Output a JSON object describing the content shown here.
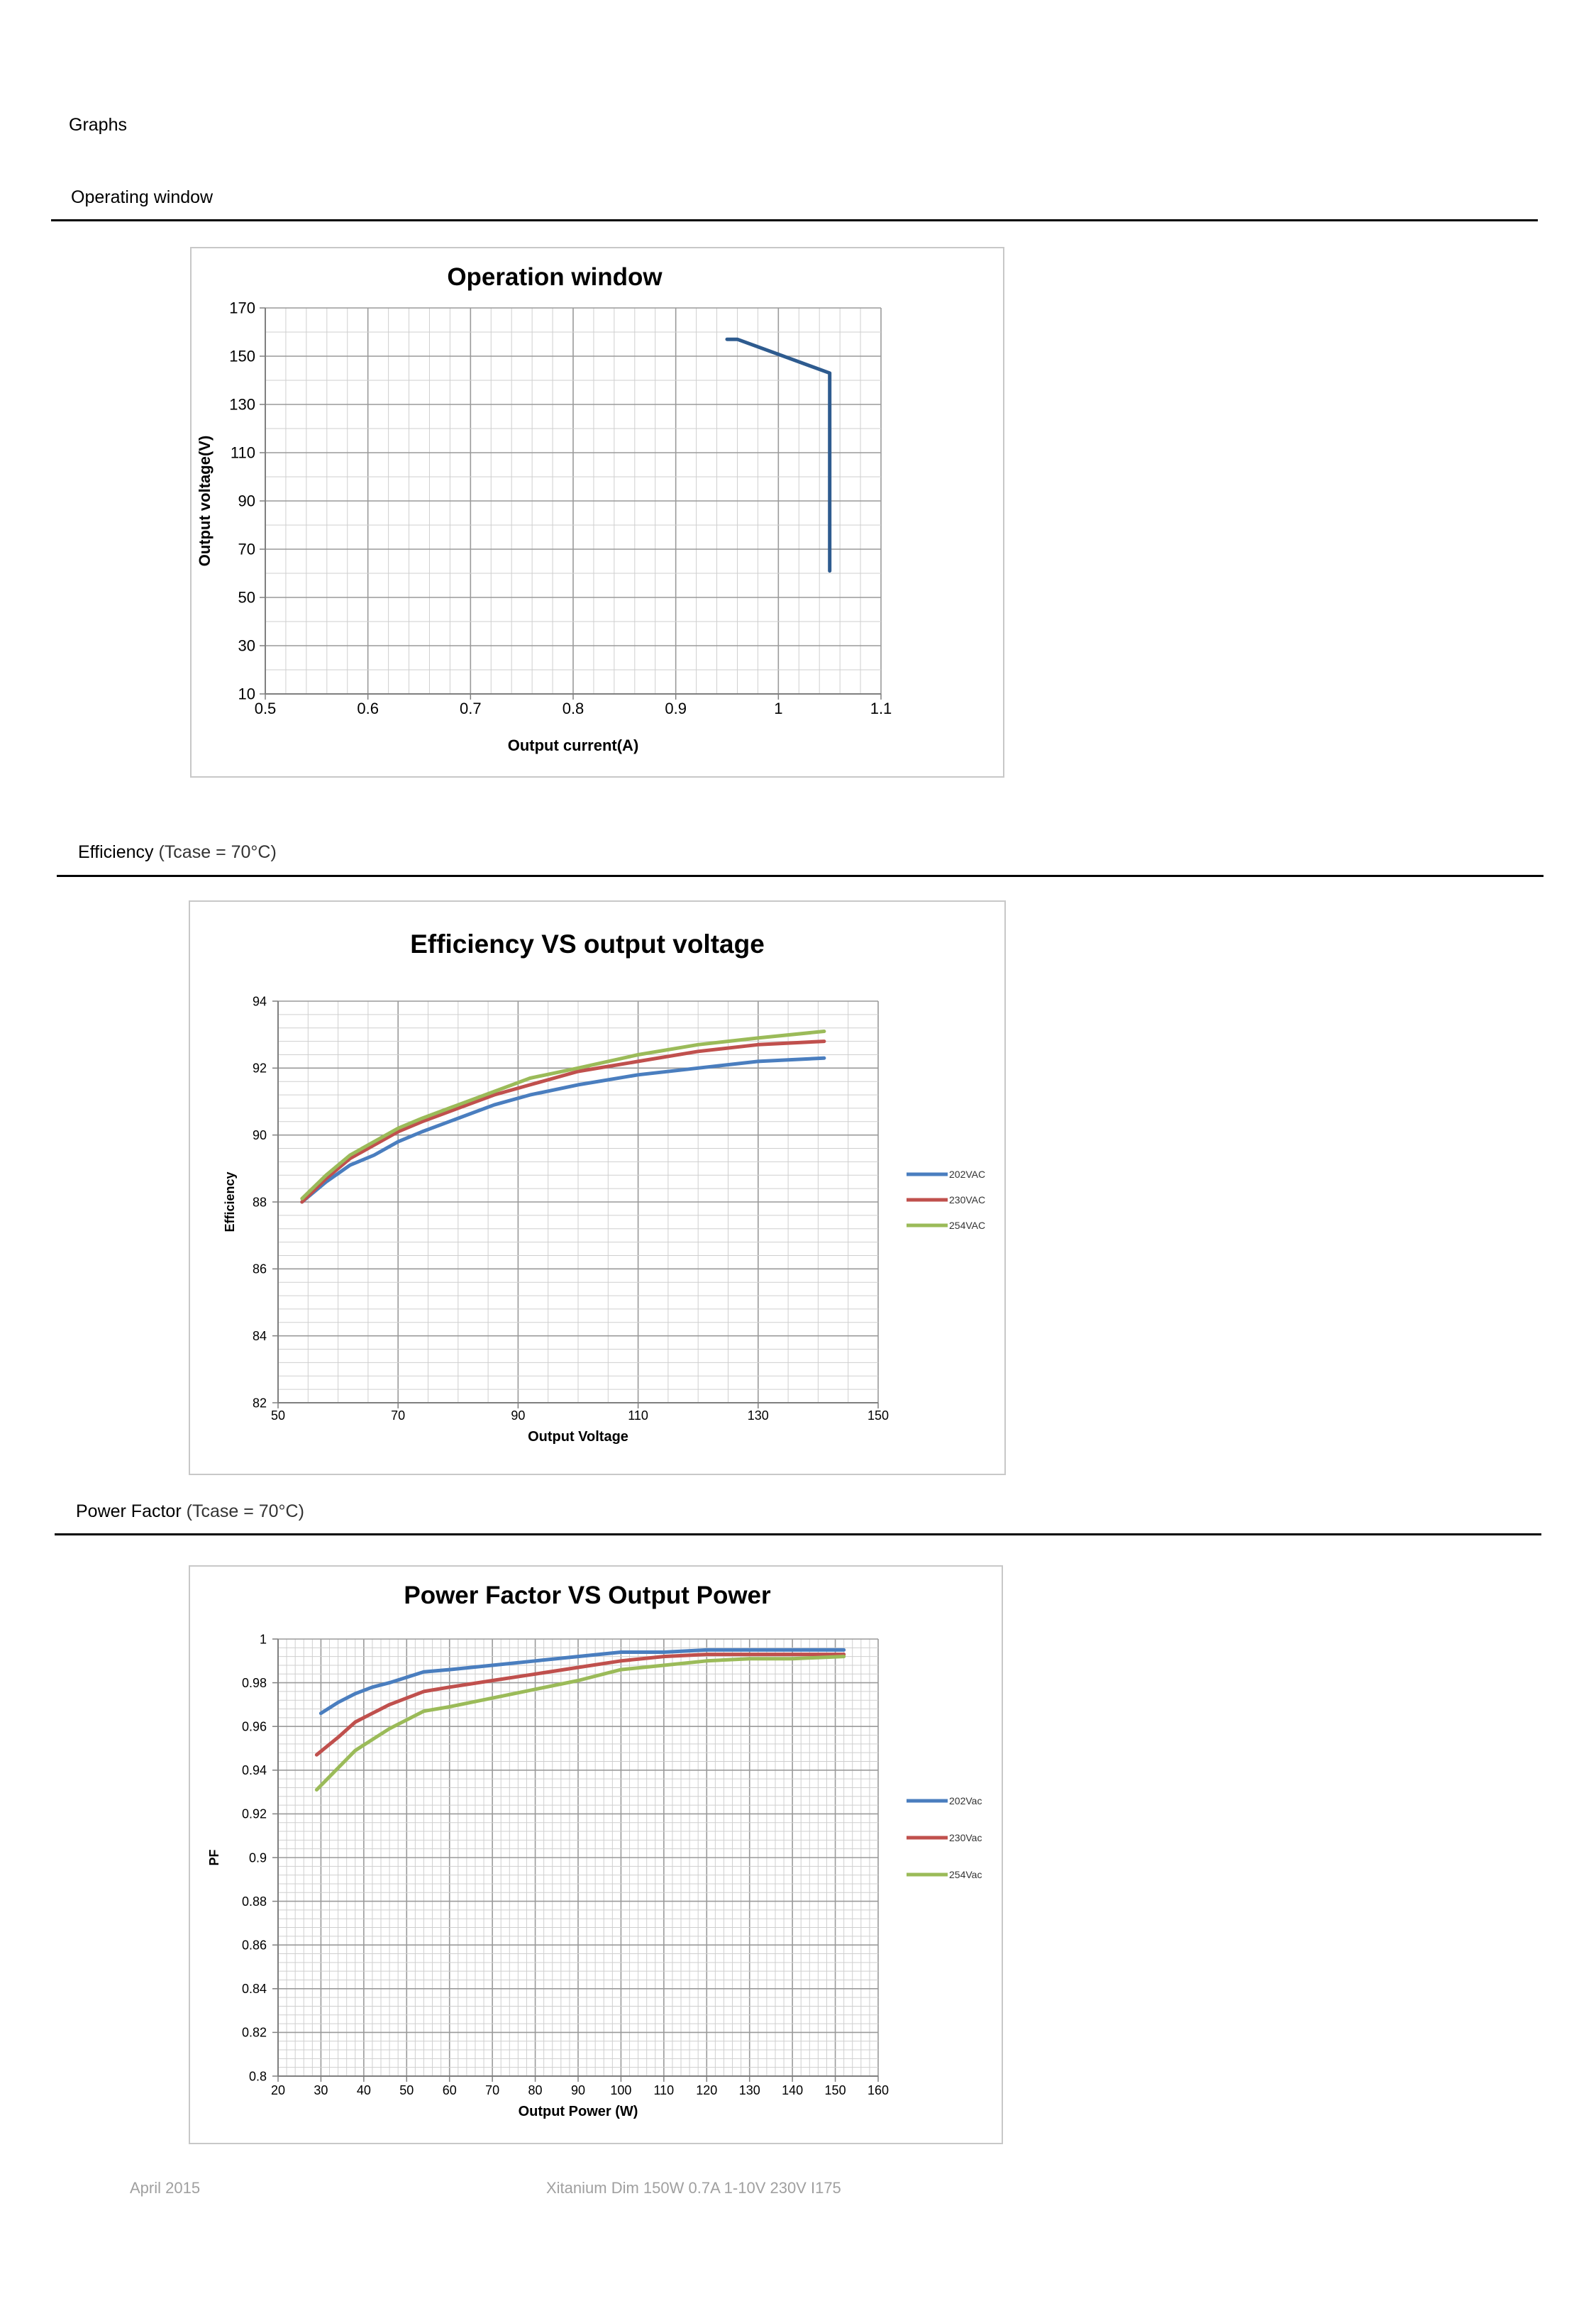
{
  "document": {
    "heading": "Graphs",
    "footer_date": "April 2015",
    "footer_product": "Xitanium Dim 150W 0.7A 1-10V 230V I175"
  },
  "sections": [
    {
      "title": "Operating window",
      "note": ""
    },
    {
      "title": "Efficiency",
      "note": "(Tcase = 70°C)"
    },
    {
      "title": "Power Factor",
      "note": "(Tcase = 70°C)"
    }
  ],
  "chart_data": [
    {
      "type": "line",
      "title": "Operation window",
      "xlabel": "Output current(A)",
      "ylabel": "Output voltage(V)",
      "xlim": [
        0.5,
        1.1
      ],
      "ylim": [
        10,
        170
      ],
      "xticks": [
        "0.5",
        "0.6",
        "0.7",
        "0.8",
        "0.9",
        "1",
        "1.1"
      ],
      "yticks": [
        "10",
        "30",
        "50",
        "70",
        "90",
        "110",
        "130",
        "150",
        "170"
      ],
      "grid": true,
      "legend": "none",
      "series": [
        {
          "color": "#2e5b8f",
          "x": [
            0.95,
            0.96,
            1.05,
            1.05
          ],
          "y": [
            157,
            157,
            143,
            61
          ]
        }
      ]
    },
    {
      "type": "line",
      "title": "Efficiency VS output voltage",
      "xlabel": "Output Voltage",
      "ylabel": "Efficiency",
      "xlim": [
        50,
        150
      ],
      "ylim": [
        82,
        94
      ],
      "xticks": [
        "50",
        "70",
        "90",
        "110",
        "130",
        "150"
      ],
      "yticks": [
        "82",
        "84",
        "86",
        "88",
        "90",
        "92",
        "94"
      ],
      "grid": true,
      "legend": "right",
      "series": [
        {
          "name": "202VAC",
          "color": "#4a7ebf",
          "x": [
            54,
            58,
            62,
            66,
            70,
            74,
            80,
            86,
            92,
            100,
            110,
            120,
            130,
            141
          ],
          "y": [
            88.0,
            88.6,
            89.1,
            89.4,
            89.8,
            90.1,
            90.5,
            90.9,
            91.2,
            91.5,
            91.8,
            92.0,
            92.2,
            92.3
          ]
        },
        {
          "name": "230VAC",
          "color": "#c0504d",
          "x": [
            54,
            58,
            62,
            66,
            70,
            74,
            80,
            86,
            92,
            100,
            110,
            120,
            130,
            141
          ],
          "y": [
            88.0,
            88.7,
            89.3,
            89.7,
            90.1,
            90.4,
            90.8,
            91.2,
            91.5,
            91.9,
            92.2,
            92.5,
            92.7,
            92.8
          ]
        },
        {
          "name": "254VAC",
          "color": "#9bbb59",
          "x": [
            54,
            58,
            62,
            66,
            70,
            74,
            80,
            86,
            92,
            100,
            110,
            120,
            130,
            141
          ],
          "y": [
            88.1,
            88.8,
            89.4,
            89.8,
            90.2,
            90.5,
            90.9,
            91.3,
            91.7,
            92.0,
            92.4,
            92.7,
            92.9,
            93.1
          ]
        }
      ]
    },
    {
      "type": "line",
      "title": "Power Factor VS Output Power",
      "xlabel": "Output Power (W)",
      "ylabel": "PF",
      "xlim": [
        20,
        160
      ],
      "ylim": [
        0.8,
        1
      ],
      "xticks": [
        "20",
        "30",
        "40",
        "50",
        "60",
        "70",
        "80",
        "90",
        "100",
        "110",
        "120",
        "130",
        "140",
        "150",
        "160"
      ],
      "yticks": [
        "0.8",
        "0.82",
        "0.84",
        "0.86",
        "0.88",
        "0.9",
        "0.92",
        "0.94",
        "0.96",
        "0.98",
        "1"
      ],
      "grid": true,
      "legend": "right",
      "series": [
        {
          "name": "202Vac",
          "color": "#4a7ebf",
          "x": [
            30,
            34,
            38,
            42,
            46,
            54,
            60,
            70,
            80,
            90,
            100,
            110,
            120,
            130,
            140,
            152
          ],
          "y": [
            0.966,
            0.971,
            0.975,
            0.978,
            0.98,
            0.985,
            0.986,
            0.988,
            0.99,
            0.992,
            0.994,
            0.994,
            0.995,
            0.995,
            0.995,
            0.995
          ]
        },
        {
          "name": "230Vac",
          "color": "#c0504d",
          "x": [
            29,
            34,
            38,
            42,
            46,
            54,
            60,
            70,
            80,
            90,
            100,
            110,
            120,
            130,
            140,
            152
          ],
          "y": [
            0.947,
            0.955,
            0.962,
            0.966,
            0.97,
            0.976,
            0.978,
            0.981,
            0.984,
            0.987,
            0.99,
            0.992,
            0.993,
            0.993,
            0.993,
            0.993
          ]
        },
        {
          "name": "254Vac",
          "color": "#9bbb59",
          "x": [
            29,
            34,
            38,
            42,
            46,
            54,
            60,
            70,
            80,
            90,
            100,
            110,
            120,
            130,
            140,
            152
          ],
          "y": [
            0.931,
            0.941,
            0.949,
            0.954,
            0.959,
            0.967,
            0.969,
            0.973,
            0.977,
            0.981,
            0.986,
            0.988,
            0.99,
            0.991,
            0.991,
            0.992
          ]
        }
      ]
    }
  ]
}
